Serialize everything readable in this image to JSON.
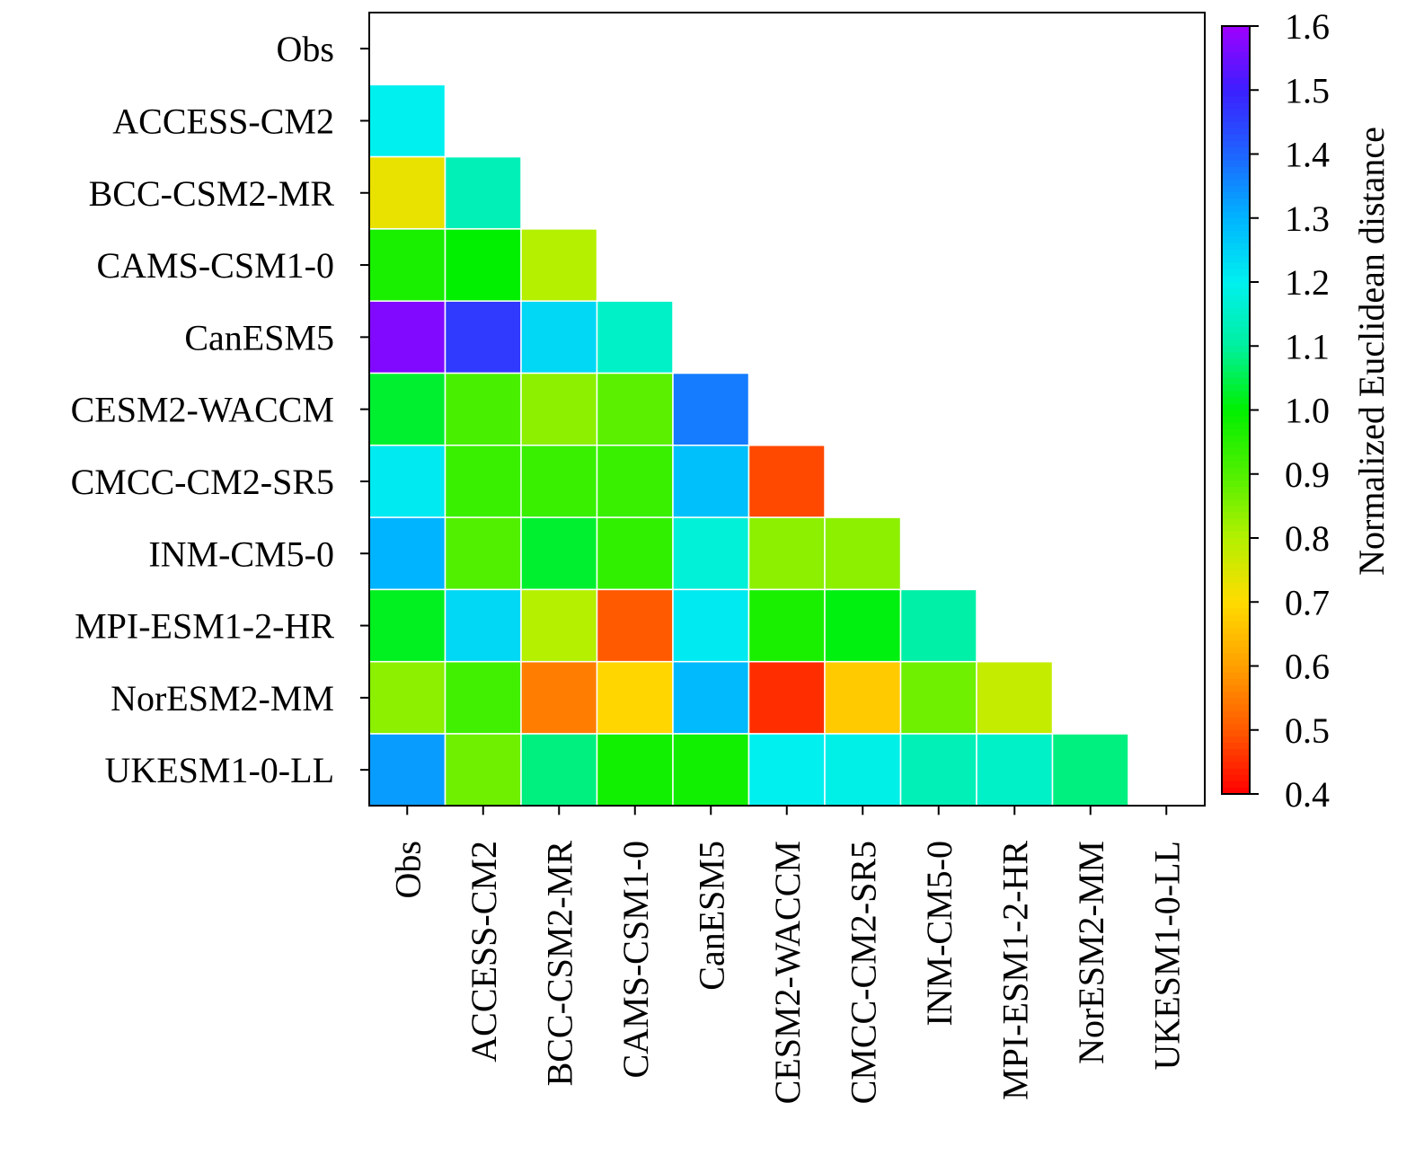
{
  "chart_data": {
    "type": "heatmap",
    "title": "",
    "models": [
      "Obs",
      "ACCESS-CM2",
      "BCC-CSM2-MR",
      "CAMS-CSM1-0",
      "CanESM5",
      "CESM2-WACCM",
      "CMCC-CM2-SR5",
      "INM-CM5-0",
      "MPI-ESM1-2-HR",
      "NorESM2-MM",
      "UKESM1-0-LL"
    ],
    "matrix": [
      [],
      [
        1.2
      ],
      [
        0.73,
        1.13
      ],
      [
        0.97,
        1.0,
        0.8
      ],
      [
        1.57,
        1.46,
        1.24,
        1.15
      ],
      [
        1.03,
        0.91,
        0.84,
        0.89,
        1.37
      ],
      [
        1.21,
        0.93,
        0.93,
        0.93,
        1.28,
        0.48
      ],
      [
        1.3,
        0.9,
        1.03,
        0.94,
        1.17,
        0.84,
        0.84
      ],
      [
        1.02,
        1.24,
        0.8,
        0.5,
        1.21,
        0.97,
        1.01,
        1.11
      ],
      [
        0.84,
        0.92,
        0.55,
        0.69,
        1.29,
        0.45,
        0.67,
        0.87,
        0.78
      ],
      [
        1.33,
        0.87,
        1.08,
        0.98,
        0.98,
        1.2,
        1.19,
        1.13,
        1.15,
        1.08
      ]
    ],
    "colorbar": {
      "label": "Normalized Euclidean distance",
      "min": 0.4,
      "max": 1.6,
      "ticks": [
        "0.4",
        "0.5",
        "0.6",
        "0.7",
        "0.8",
        "0.9",
        "1.0",
        "1.1",
        "1.2",
        "1.3",
        "1.4",
        "1.5",
        "1.6"
      ]
    },
    "colormap": [
      "#ff0000",
      "#ff5a00",
      "#ffa000",
      "#ffdc00",
      "#b4f000",
      "#50f000",
      "#00f000",
      "#00f0a0",
      "#00f0f0",
      "#00b4ff",
      "#1e64ff",
      "#3c1eff",
      "#a000ff"
    ]
  }
}
